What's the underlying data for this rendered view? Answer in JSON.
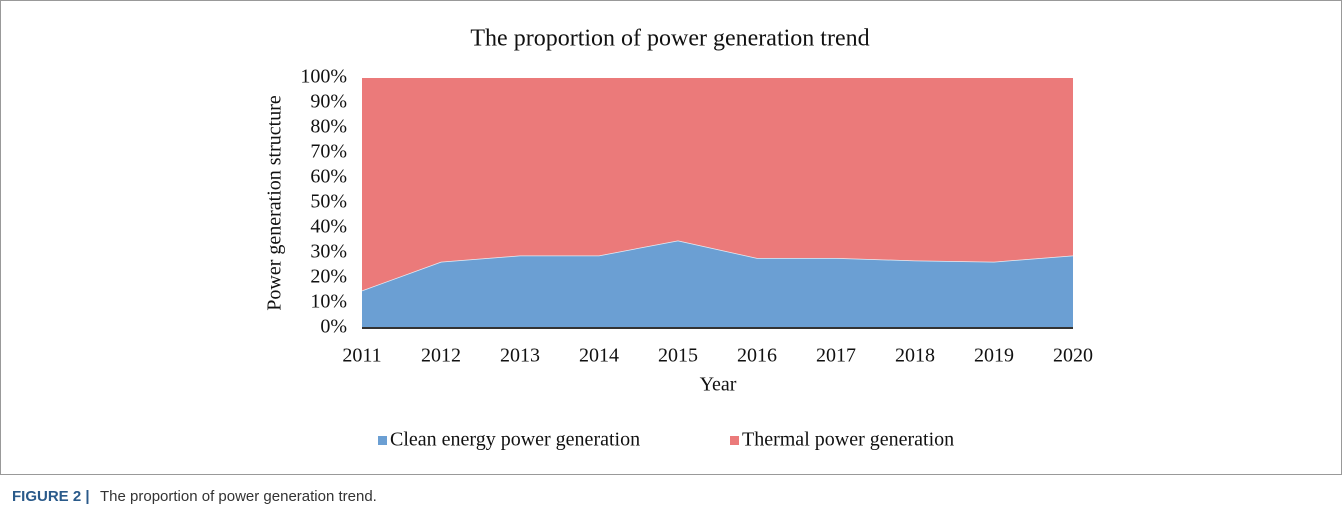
{
  "chart_data": {
    "type": "stacked_area",
    "title": "The proportion of power generation trend",
    "x_label": "Year",
    "y_label": "Power generation structure",
    "categories": [
      "2011",
      "2012",
      "2013",
      "2014",
      "2015",
      "2016",
      "2017",
      "2018",
      "2019",
      "2020"
    ],
    "series": [
      {
        "name": "Clean energy power generation",
        "color": "#6b9fd3",
        "values": [
          15,
          26.5,
          29,
          29,
          35,
          28,
          28,
          27,
          26.5,
          29
        ]
      },
      {
        "name": "Thermal power generation",
        "color": "#eb7a7a",
        "values": [
          85,
          73.5,
          71,
          71,
          65,
          72,
          72,
          73,
          73.5,
          71
        ]
      }
    ],
    "ylim": [
      0,
      100
    ],
    "yticks": [
      {
        "value": 0,
        "label": "0%"
      },
      {
        "value": 10,
        "label": "10%"
      },
      {
        "value": 20,
        "label": "20%"
      },
      {
        "value": 30,
        "label": "30%"
      },
      {
        "value": 40,
        "label": "40%"
      },
      {
        "value": 50,
        "label": "50%"
      },
      {
        "value": 60,
        "label": "60%"
      },
      {
        "value": 70,
        "label": "70%"
      },
      {
        "value": 80,
        "label": "80%"
      },
      {
        "value": 90,
        "label": "90%"
      },
      {
        "value": 100,
        "label": "100%"
      }
    ],
    "legend": "bottom",
    "caption_label": "FIGURE 2 |",
    "caption": "The proportion of power generation trend."
  }
}
